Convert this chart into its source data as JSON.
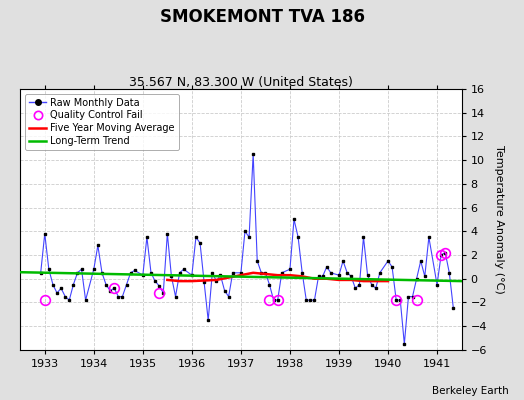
{
  "title": "SMOKEMONT TVA 186",
  "subtitle": "35.567 N, 83.300 W (United States)",
  "ylabel": "Temperature Anomaly (°C)",
  "credit": "Berkeley Earth",
  "ylim": [
    -6,
    16
  ],
  "yticks": [
    -6,
    -4,
    -2,
    0,
    2,
    4,
    6,
    8,
    10,
    12,
    14,
    16
  ],
  "xlim": [
    1932.5,
    1941.5
  ],
  "xticks": [
    1933,
    1934,
    1935,
    1936,
    1937,
    1938,
    1939,
    1940,
    1941
  ],
  "bg_color": "#e0e0e0",
  "plot_bg_color": "#ffffff",
  "raw_x": [
    1932.917,
    1933.0,
    1933.083,
    1933.167,
    1933.25,
    1933.333,
    1933.417,
    1933.5,
    1933.583,
    1933.667,
    1933.75,
    1933.833,
    1934.0,
    1934.083,
    1934.167,
    1934.25,
    1934.333,
    1934.417,
    1934.5,
    1934.583,
    1934.667,
    1934.75,
    1934.833,
    1935.0,
    1935.083,
    1935.167,
    1935.25,
    1935.333,
    1935.417,
    1935.5,
    1935.583,
    1935.667,
    1935.75,
    1935.833,
    1936.0,
    1936.083,
    1936.167,
    1936.25,
    1936.333,
    1936.417,
    1936.5,
    1936.583,
    1936.667,
    1936.75,
    1936.833,
    1937.0,
    1937.083,
    1937.167,
    1937.25,
    1937.333,
    1937.417,
    1937.5,
    1937.583,
    1937.667,
    1937.75,
    1937.833,
    1938.0,
    1938.083,
    1938.167,
    1938.25,
    1938.333,
    1938.417,
    1938.5,
    1938.583,
    1938.667,
    1938.75,
    1938.833,
    1939.0,
    1939.083,
    1939.167,
    1939.25,
    1939.333,
    1939.417,
    1939.5,
    1939.583,
    1939.667,
    1939.75,
    1939.833,
    1940.0,
    1940.083,
    1940.167,
    1940.25,
    1940.333,
    1940.417,
    1940.5,
    1940.583,
    1940.667,
    1940.75,
    1940.833,
    1941.0,
    1941.083,
    1941.167,
    1941.25,
    1941.333
  ],
  "raw_y": [
    0.5,
    3.8,
    0.8,
    -0.5,
    -1.2,
    -0.8,
    -1.5,
    -1.8,
    -0.5,
    0.5,
    0.8,
    -1.8,
    0.8,
    2.8,
    0.5,
    -0.5,
    -1.0,
    -0.8,
    -1.5,
    -1.5,
    -0.5,
    0.5,
    0.7,
    0.3,
    3.5,
    0.5,
    -0.2,
    -0.6,
    -1.2,
    3.8,
    0.2,
    -1.5,
    0.5,
    0.8,
    0.3,
    3.5,
    3.0,
    -0.3,
    -3.5,
    0.5,
    -0.2,
    0.3,
    -1.0,
    -1.5,
    0.5,
    0.5,
    4.0,
    3.5,
    10.5,
    1.5,
    0.5,
    0.5,
    -0.5,
    -1.8,
    -1.8,
    0.5,
    0.8,
    5.0,
    3.5,
    0.5,
    -1.8,
    -1.8,
    -1.8,
    0.2,
    0.2,
    1.0,
    0.5,
    0.3,
    1.5,
    0.5,
    0.2,
    -0.8,
    -0.5,
    3.5,
    0.3,
    -0.5,
    -0.8,
    0.5,
    1.5,
    1.0,
    -1.8,
    -1.8,
    -5.5,
    -1.5,
    -1.5,
    0.0,
    1.5,
    0.2,
    3.5,
    -0.5,
    2.0,
    2.2,
    0.5,
    -2.5
  ],
  "qc_fail_x": [
    1933.0,
    1934.417,
    1935.333,
    1937.583,
    1937.75,
    1940.167,
    1940.583,
    1941.083,
    1941.167
  ],
  "qc_fail_y": [
    -1.8,
    -0.8,
    -1.2,
    -1.8,
    -1.8,
    -1.8,
    -1.8,
    2.0,
    2.2
  ],
  "moving_avg_x": [
    1935.5,
    1935.75,
    1936.0,
    1936.25,
    1936.5,
    1936.75,
    1937.0,
    1937.25,
    1937.5,
    1937.75,
    1938.0,
    1938.25,
    1938.5,
    1938.75,
    1939.0,
    1939.25,
    1939.5,
    1939.75,
    1940.0
  ],
  "moving_avg_y": [
    -0.1,
    -0.2,
    -0.2,
    -0.15,
    -0.1,
    0.1,
    0.3,
    0.5,
    0.4,
    0.3,
    0.3,
    0.2,
    0.0,
    0.0,
    -0.1,
    -0.1,
    -0.2,
    -0.2,
    -0.2
  ],
  "trend_x": [
    1932.5,
    1941.5
  ],
  "trend_y": [
    0.55,
    -0.2
  ],
  "raw_line_color": "#4444ff",
  "raw_marker_color": "#000000",
  "qc_color": "#ff00ff",
  "moving_avg_color": "#ff0000",
  "trend_color": "#00bb00",
  "grid_color": "#cccccc",
  "title_fontsize": 12,
  "subtitle_fontsize": 9,
  "tick_fontsize": 8,
  "ylabel_fontsize": 8
}
